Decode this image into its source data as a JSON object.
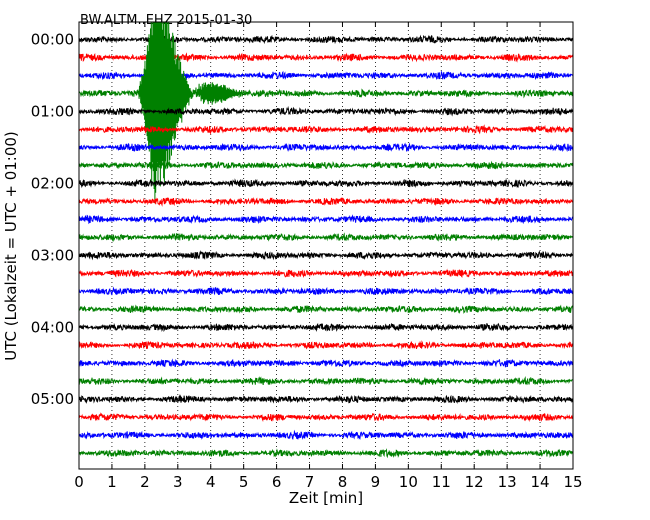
{
  "chart_data": {
    "type": "line",
    "title": "BW.ALTM..EHZ 2015-01-30",
    "xlabel": "Zeit  [min]",
    "ylabel": "UTC (Lokalzeit = UTC + 01:00)",
    "xlim": [
      0,
      15
    ],
    "x_ticks": [
      0,
      1,
      2,
      3,
      4,
      5,
      6,
      7,
      8,
      9,
      10,
      11,
      12,
      13,
      14,
      15
    ],
    "x_tick_labels": [
      "0",
      "1",
      "2",
      "3",
      "4",
      "5",
      "6",
      "7",
      "8",
      "9",
      "10",
      "11",
      "12",
      "13",
      "14",
      "15"
    ],
    "y_tick_labels": [
      "00:00",
      "01:00",
      "02:00",
      "03:00",
      "04:00",
      "05:00"
    ],
    "grid": "vertical-dotted",
    "row_interval_minutes": 15,
    "row_colors": [
      "#000000",
      "#ff0000",
      "#0000ff",
      "#008000"
    ],
    "rows": [
      {
        "time": "00:00",
        "color": "#000000"
      },
      {
        "time": "00:15",
        "color": "#ff0000"
      },
      {
        "time": "00:30",
        "color": "#0000ff"
      },
      {
        "time": "00:45",
        "color": "#008000"
      },
      {
        "time": "01:00",
        "color": "#000000"
      },
      {
        "time": "01:15",
        "color": "#ff0000"
      },
      {
        "time": "01:30",
        "color": "#0000ff"
      },
      {
        "time": "01:45",
        "color": "#008000"
      },
      {
        "time": "02:00",
        "color": "#000000"
      },
      {
        "time": "02:15",
        "color": "#ff0000"
      },
      {
        "time": "02:30",
        "color": "#0000ff"
      },
      {
        "time": "02:45",
        "color": "#008000"
      },
      {
        "time": "03:00",
        "color": "#000000"
      },
      {
        "time": "03:15",
        "color": "#ff0000"
      },
      {
        "time": "03:30",
        "color": "#0000ff"
      },
      {
        "time": "03:45",
        "color": "#008000"
      },
      {
        "time": "04:00",
        "color": "#000000"
      },
      {
        "time": "04:15",
        "color": "#ff0000"
      },
      {
        "time": "04:30",
        "color": "#0000ff"
      },
      {
        "time": "04:45",
        "color": "#008000"
      },
      {
        "time": "05:00",
        "color": "#000000"
      },
      {
        "time": "05:15",
        "color": "#ff0000"
      },
      {
        "time": "05:30",
        "color": "#0000ff"
      },
      {
        "time": "05:45",
        "color": "#008000"
      }
    ],
    "event": {
      "row_time": "00:45",
      "start_min": 1.6,
      "peak_min": 2.3,
      "end_min": 6.5,
      "color": "#008000"
    }
  }
}
